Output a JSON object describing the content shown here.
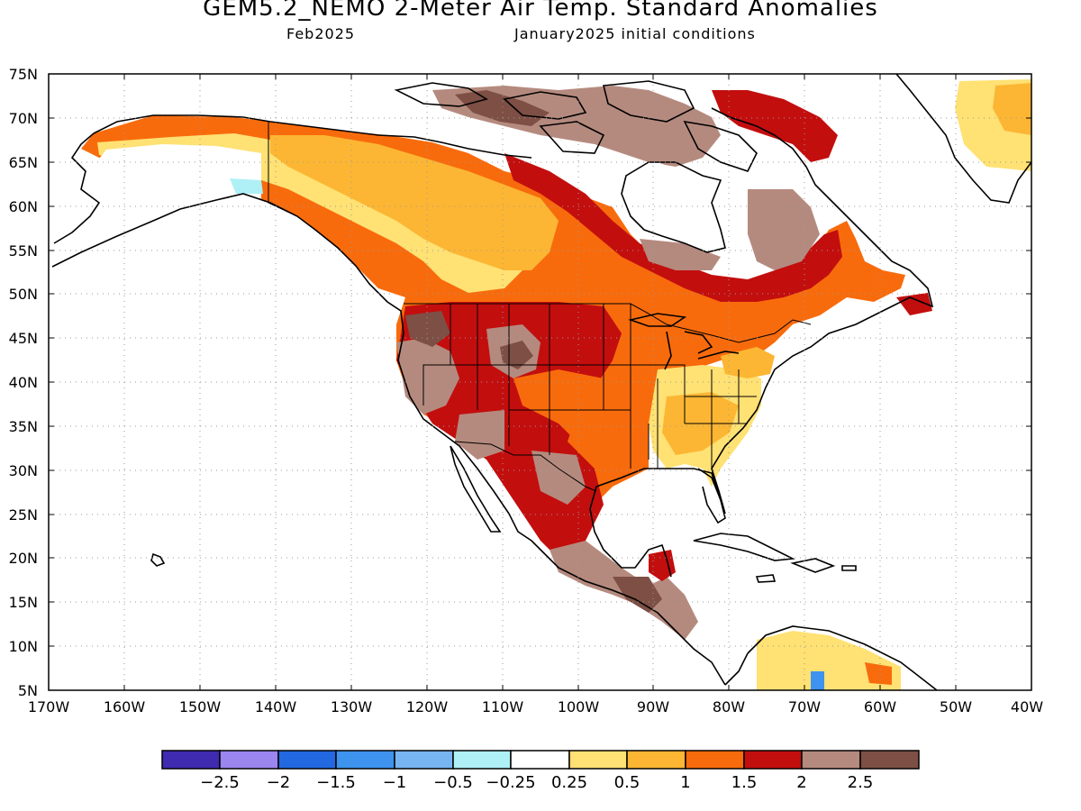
{
  "title": "GEM5.2_NEMO 2-Meter Air Temp. Standard Anomalies",
  "subtitle_left": "Feb2025",
  "subtitle_right": "January2025 initial conditions",
  "lat_labels": [
    "75N",
    "70N",
    "65N",
    "60N",
    "55N",
    "50N",
    "45N",
    "40N",
    "35N",
    "30N",
    "25N",
    "20N",
    "15N",
    "10N",
    "5N"
  ],
  "lon_labels": [
    "170W",
    "160W",
    "150W",
    "140W",
    "130W",
    "120W",
    "110W",
    "100W",
    "90W",
    "80W",
    "70W",
    "60W",
    "50W",
    "40W"
  ],
  "colorbar": {
    "colors": [
      "#3f2bb0",
      "#9b85ef",
      "#2268e0",
      "#3e93ee",
      "#76b5f2",
      "#aef0f6",
      "#ffffff",
      "#ffe174",
      "#fcb633",
      "#f86b0c",
      "#c30e0e",
      "#b58a7e",
      "#7d4f45"
    ],
    "labels": [
      "−2.5",
      "−2",
      "−1.5",
      "−1",
      "−0.5",
      "−0.25",
      "0.25",
      "0.5",
      "1",
      "1.5",
      "2",
      "2.5"
    ]
  }
}
